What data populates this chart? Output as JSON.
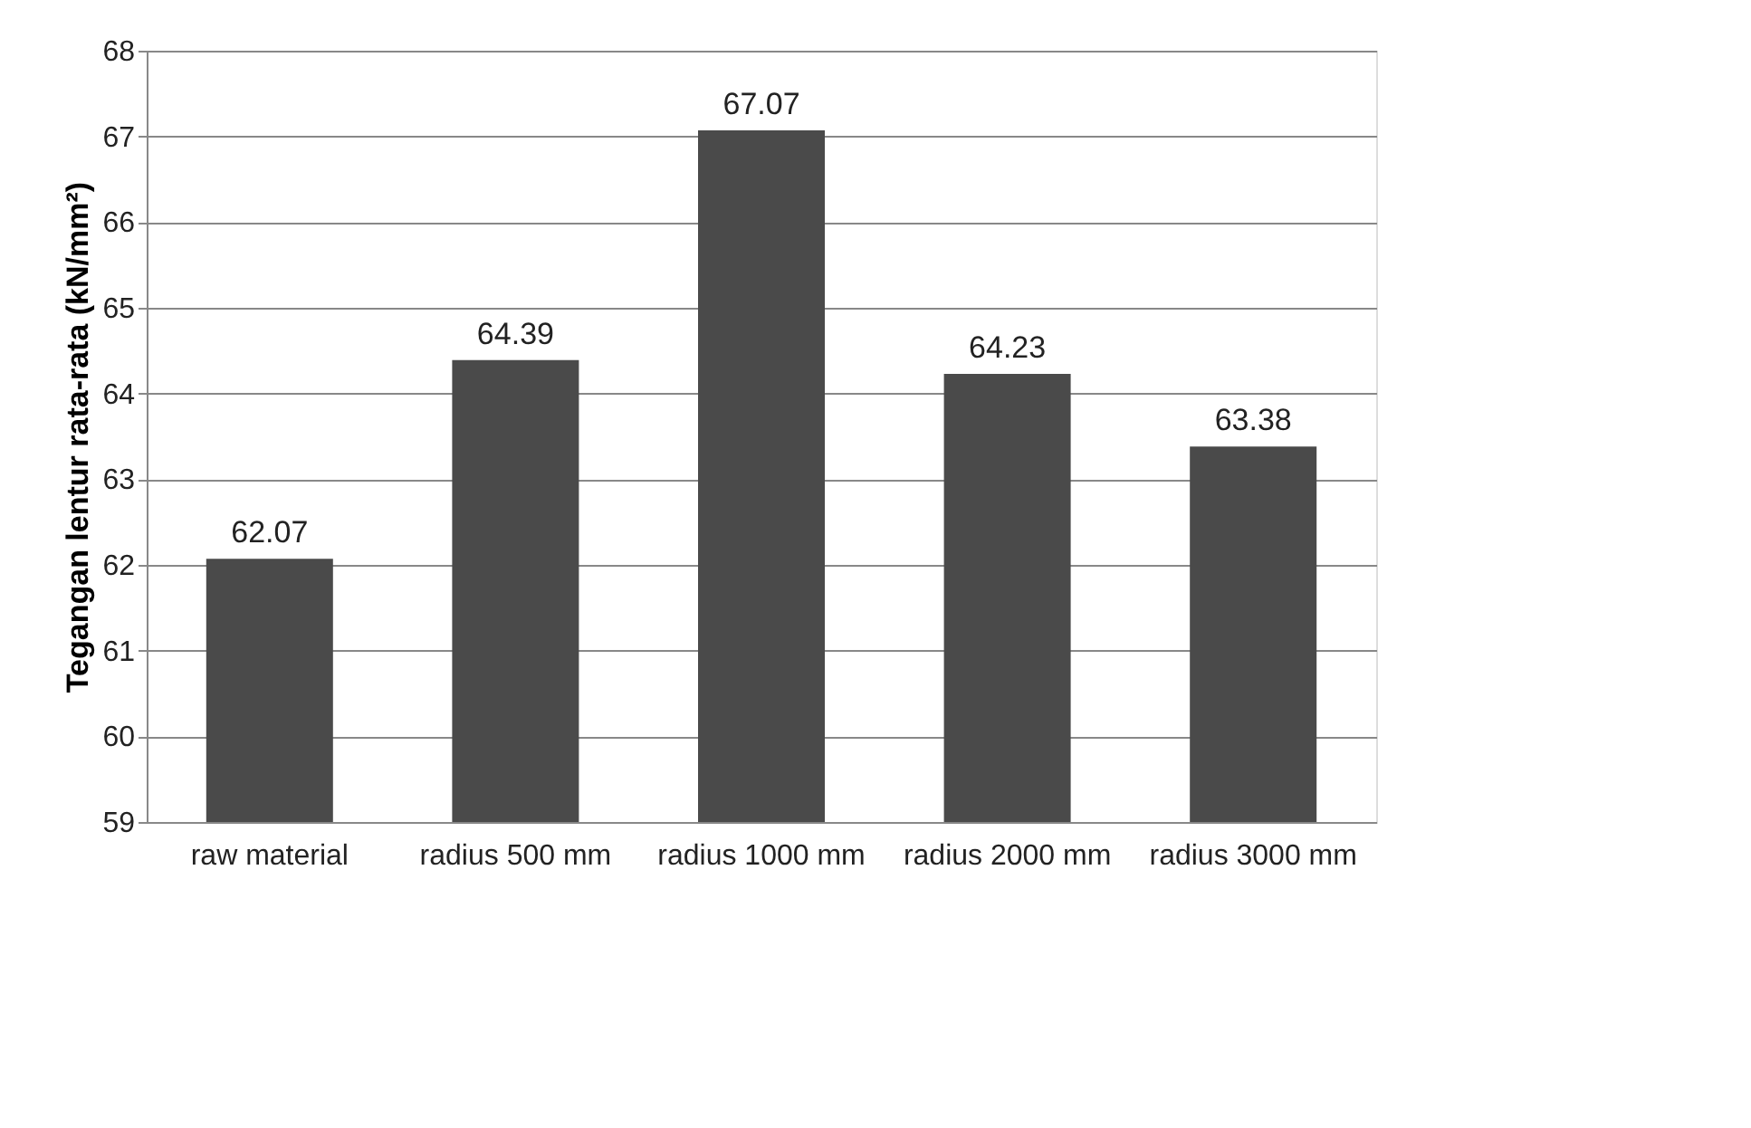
{
  "chart_data": {
    "type": "bar",
    "ylabel": "Tegangan lentur rata-rata (kN/mm²)",
    "categories": [
      "raw material",
      "radius 500 mm",
      "radius 1000 mm",
      "radius 2000 mm",
      "radius 3000 mm"
    ],
    "values": [
      62.07,
      64.39,
      67.07,
      64.23,
      63.38
    ],
    "color": "#4a4a4a",
    "ylim": [
      59,
      68
    ],
    "yticks": [
      59,
      60,
      61,
      62,
      63,
      64,
      65,
      66,
      67,
      68
    ],
    "grid": "y",
    "data_labels": true
  }
}
